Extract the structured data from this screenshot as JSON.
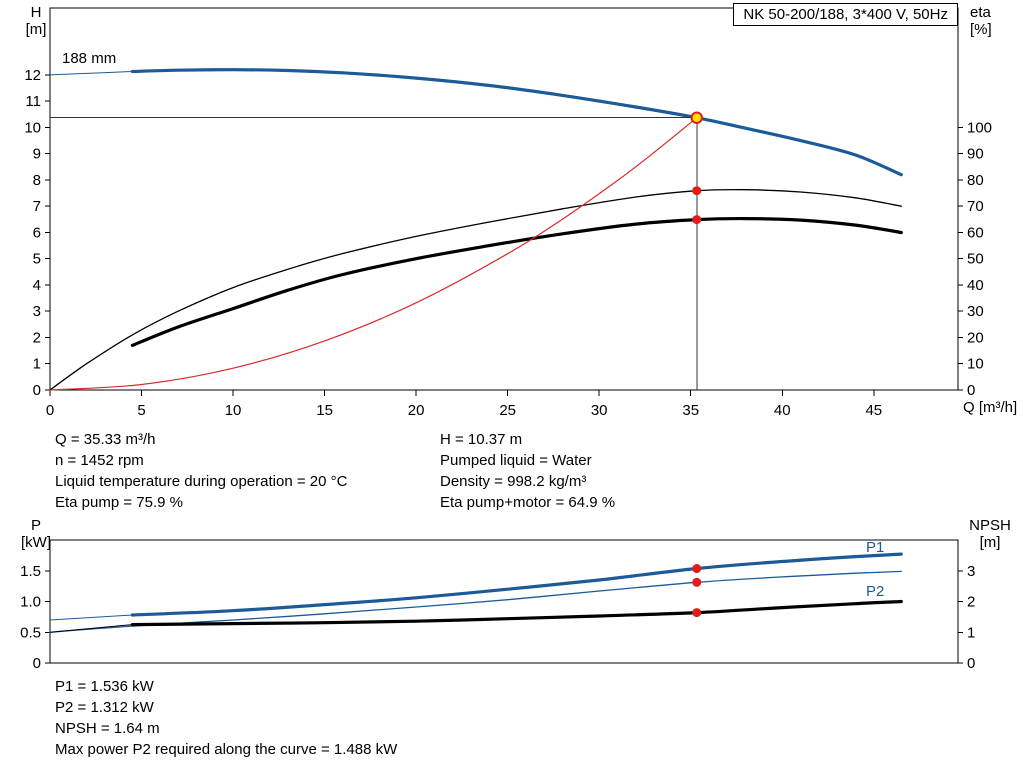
{
  "colors": {
    "curve_blue": "#1c5a99",
    "curve_black": "#000000",
    "curve_red": "#d92b2b",
    "dot_red": "#e31b1b",
    "duty_fill": "#ffe200",
    "duty_ring": "#e31b1b",
    "crosshair": "#333333"
  },
  "title_box": "NK 50-200/188, 3*400 V, 50Hz",
  "axis_labels": {
    "h": [
      "H",
      "[m]"
    ],
    "eta": [
      "eta",
      "[%]"
    ],
    "q": "Q [m³/h]",
    "p": [
      "P",
      "[kW]"
    ],
    "npsh": [
      "NPSH",
      "[m]"
    ]
  },
  "curve_labels": {
    "impeller": "188 mm",
    "p1": "P1",
    "p2": "P2"
  },
  "info_top_left": [
    "Q = 35.33 m³/h",
    "n = 1452 rpm",
    "Liquid temperature during operation = 20 °C",
    "Eta pump = 75.9 %"
  ],
  "info_top_right": [
    "H = 10.37 m",
    "Pumped liquid = Water",
    "Density = 998.2 kg/m³",
    "Eta pump+motor = 64.9 %"
  ],
  "info_bottom": [
    "P1 = 1.536 kW",
    "P2 = 1.312 kW",
    "NPSH = 1.64 m",
    "Max power P2 required along the curve = 1.488 kW"
  ],
  "chart_data": [
    {
      "type": "line",
      "title": "NK 50-200/188, 3*400 V, 50Hz",
      "xlabel": "Q [m³/h]",
      "xlim": [
        0,
        49.6
      ],
      "x_ticks": [
        0,
        5,
        10,
        15,
        20,
        25,
        30,
        35,
        40,
        45
      ],
      "left_axis": {
        "label": "H [m]",
        "lim": [
          0,
          14.55
        ],
        "ticks": [
          0,
          1,
          2,
          3,
          4,
          5,
          6,
          7,
          8,
          9,
          10,
          11,
          12
        ]
      },
      "right_axis": {
        "label": "eta [%]",
        "lim": [
          0,
          145.5
        ],
        "ticks": [
          0,
          10,
          20,
          30,
          40,
          50,
          60,
          70,
          80,
          90,
          100
        ]
      },
      "series": [
        {
          "name": "Head 188 mm",
          "axis": "left",
          "color": "#1c5a99",
          "width": 3.2,
          "thin_until": 4.5,
          "points": [
            [
              0,
              12.0
            ],
            [
              2,
              12.06
            ],
            [
              4.5,
              12.13
            ],
            [
              7,
              12.18
            ],
            [
              10,
              12.2
            ],
            [
              13,
              12.17
            ],
            [
              16,
              12.08
            ],
            [
              20,
              11.88
            ],
            [
              24,
              11.6
            ],
            [
              28,
              11.22
            ],
            [
              32,
              10.78
            ],
            [
              35.33,
              10.37
            ],
            [
              38,
              9.97
            ],
            [
              41,
              9.5
            ],
            [
              44,
              8.95
            ],
            [
              46.5,
              8.2
            ]
          ]
        },
        {
          "name": "Eta pump",
          "axis": "right",
          "color": "#000000",
          "width": 1.3,
          "points": [
            [
              0,
              0
            ],
            [
              2,
              10
            ],
            [
              4.5,
              21
            ],
            [
              7,
              30
            ],
            [
              10,
              39
            ],
            [
              13,
              46
            ],
            [
              16,
              52
            ],
            [
              20,
              58.5
            ],
            [
              24,
              64
            ],
            [
              28,
              69
            ],
            [
              32,
              73.5
            ],
            [
              35.33,
              75.9
            ],
            [
              38,
              76.3
            ],
            [
              41,
              75.4
            ],
            [
              44,
              73.2
            ],
            [
              46.5,
              70
            ]
          ]
        },
        {
          "name": "Eta pump+motor",
          "axis": "right",
          "color": "#000000",
          "width": 3.2,
          "points": [
            [
              4.5,
              17
            ],
            [
              7,
              24
            ],
            [
              10,
              31
            ],
            [
              13,
              38
            ],
            [
              16,
              44
            ],
            [
              20,
              50
            ],
            [
              24,
              55
            ],
            [
              28,
              59.5
            ],
            [
              32,
              63.2
            ],
            [
              35.33,
              64.9
            ],
            [
              38,
              65.3
            ],
            [
              41,
              64.7
            ],
            [
              44,
              62.8
            ],
            [
              46.5,
              60
            ]
          ]
        },
        {
          "name": "System curve",
          "axis": "left",
          "color": "#d92b2b",
          "width": 1.2,
          "points": [
            [
              0,
              0
            ],
            [
              5,
              0.21
            ],
            [
              10,
              0.83
            ],
            [
              15,
              1.87
            ],
            [
              20,
              3.32
            ],
            [
              25,
              5.19
            ],
            [
              28,
              6.51
            ],
            [
              31,
              7.98
            ],
            [
              33,
              9.05
            ],
            [
              35.33,
              10.37
            ]
          ]
        }
      ],
      "crosshair": {
        "q": 35.33,
        "h": 10.37
      },
      "dots": [
        {
          "q": 35.33,
          "v": 75.9,
          "axis": "right"
        },
        {
          "q": 35.33,
          "v": 64.9,
          "axis": "right"
        }
      ],
      "duty_point": {
        "q": 35.33,
        "h": 10.37
      }
    },
    {
      "type": "line",
      "title": "",
      "xlabel": "",
      "xlim": [
        0,
        49.6
      ],
      "x_ticks": [],
      "left_axis": {
        "label": "P [kW]",
        "lim": [
          0,
          2.0
        ],
        "ticks": [
          0,
          0.5,
          1,
          1.5
        ],
        "tick_labels": [
          "0",
          "0.5",
          "1.0",
          "1.5"
        ]
      },
      "right_axis": {
        "label": "NPSH [m]",
        "lim": [
          0,
          4.0
        ],
        "ticks": [
          0,
          1,
          2,
          3
        ]
      },
      "series": [
        {
          "name": "P1",
          "axis": "left",
          "color": "#1c5a99",
          "width": 3.2,
          "thin_until": 4.5,
          "points": [
            [
              0,
              0.7
            ],
            [
              4.5,
              0.78
            ],
            [
              10,
              0.85
            ],
            [
              15,
              0.95
            ],
            [
              20,
              1.06
            ],
            [
              25,
              1.2
            ],
            [
              30,
              1.35
            ],
            [
              35.33,
              1.536
            ],
            [
              40,
              1.65
            ],
            [
              44,
              1.73
            ],
            [
              46.5,
              1.77
            ]
          ]
        },
        {
          "name": "P2",
          "axis": "left",
          "color": "#1c5a99",
          "width": 1.3,
          "points": [
            [
              0,
              0.5
            ],
            [
              4.5,
              0.6
            ],
            [
              10,
              0.7
            ],
            [
              15,
              0.8
            ],
            [
              20,
              0.91
            ],
            [
              25,
              1.03
            ],
            [
              30,
              1.17
            ],
            [
              35.33,
              1.312
            ],
            [
              40,
              1.4
            ],
            [
              44,
              1.46
            ],
            [
              46.5,
              1.49
            ]
          ]
        },
        {
          "name": "NPSH",
          "axis": "right",
          "color": "#000000",
          "width": 3.2,
          "thin_until": 4.5,
          "points": [
            [
              0,
              1.0
            ],
            [
              4.5,
              1.25
            ],
            [
              10,
              1.28
            ],
            [
              15,
              1.31
            ],
            [
              20,
              1.36
            ],
            [
              25,
              1.44
            ],
            [
              30,
              1.53
            ],
            [
              35.33,
              1.64
            ],
            [
              40,
              1.8
            ],
            [
              44,
              1.93
            ],
            [
              46.5,
              2.0
            ]
          ]
        }
      ],
      "dots": [
        {
          "q": 35.33,
          "v": 1.536,
          "axis": "left"
        },
        {
          "q": 35.33,
          "v": 1.312,
          "axis": "left"
        },
        {
          "q": 35.33,
          "v": 1.64,
          "axis": "right"
        }
      ]
    }
  ]
}
